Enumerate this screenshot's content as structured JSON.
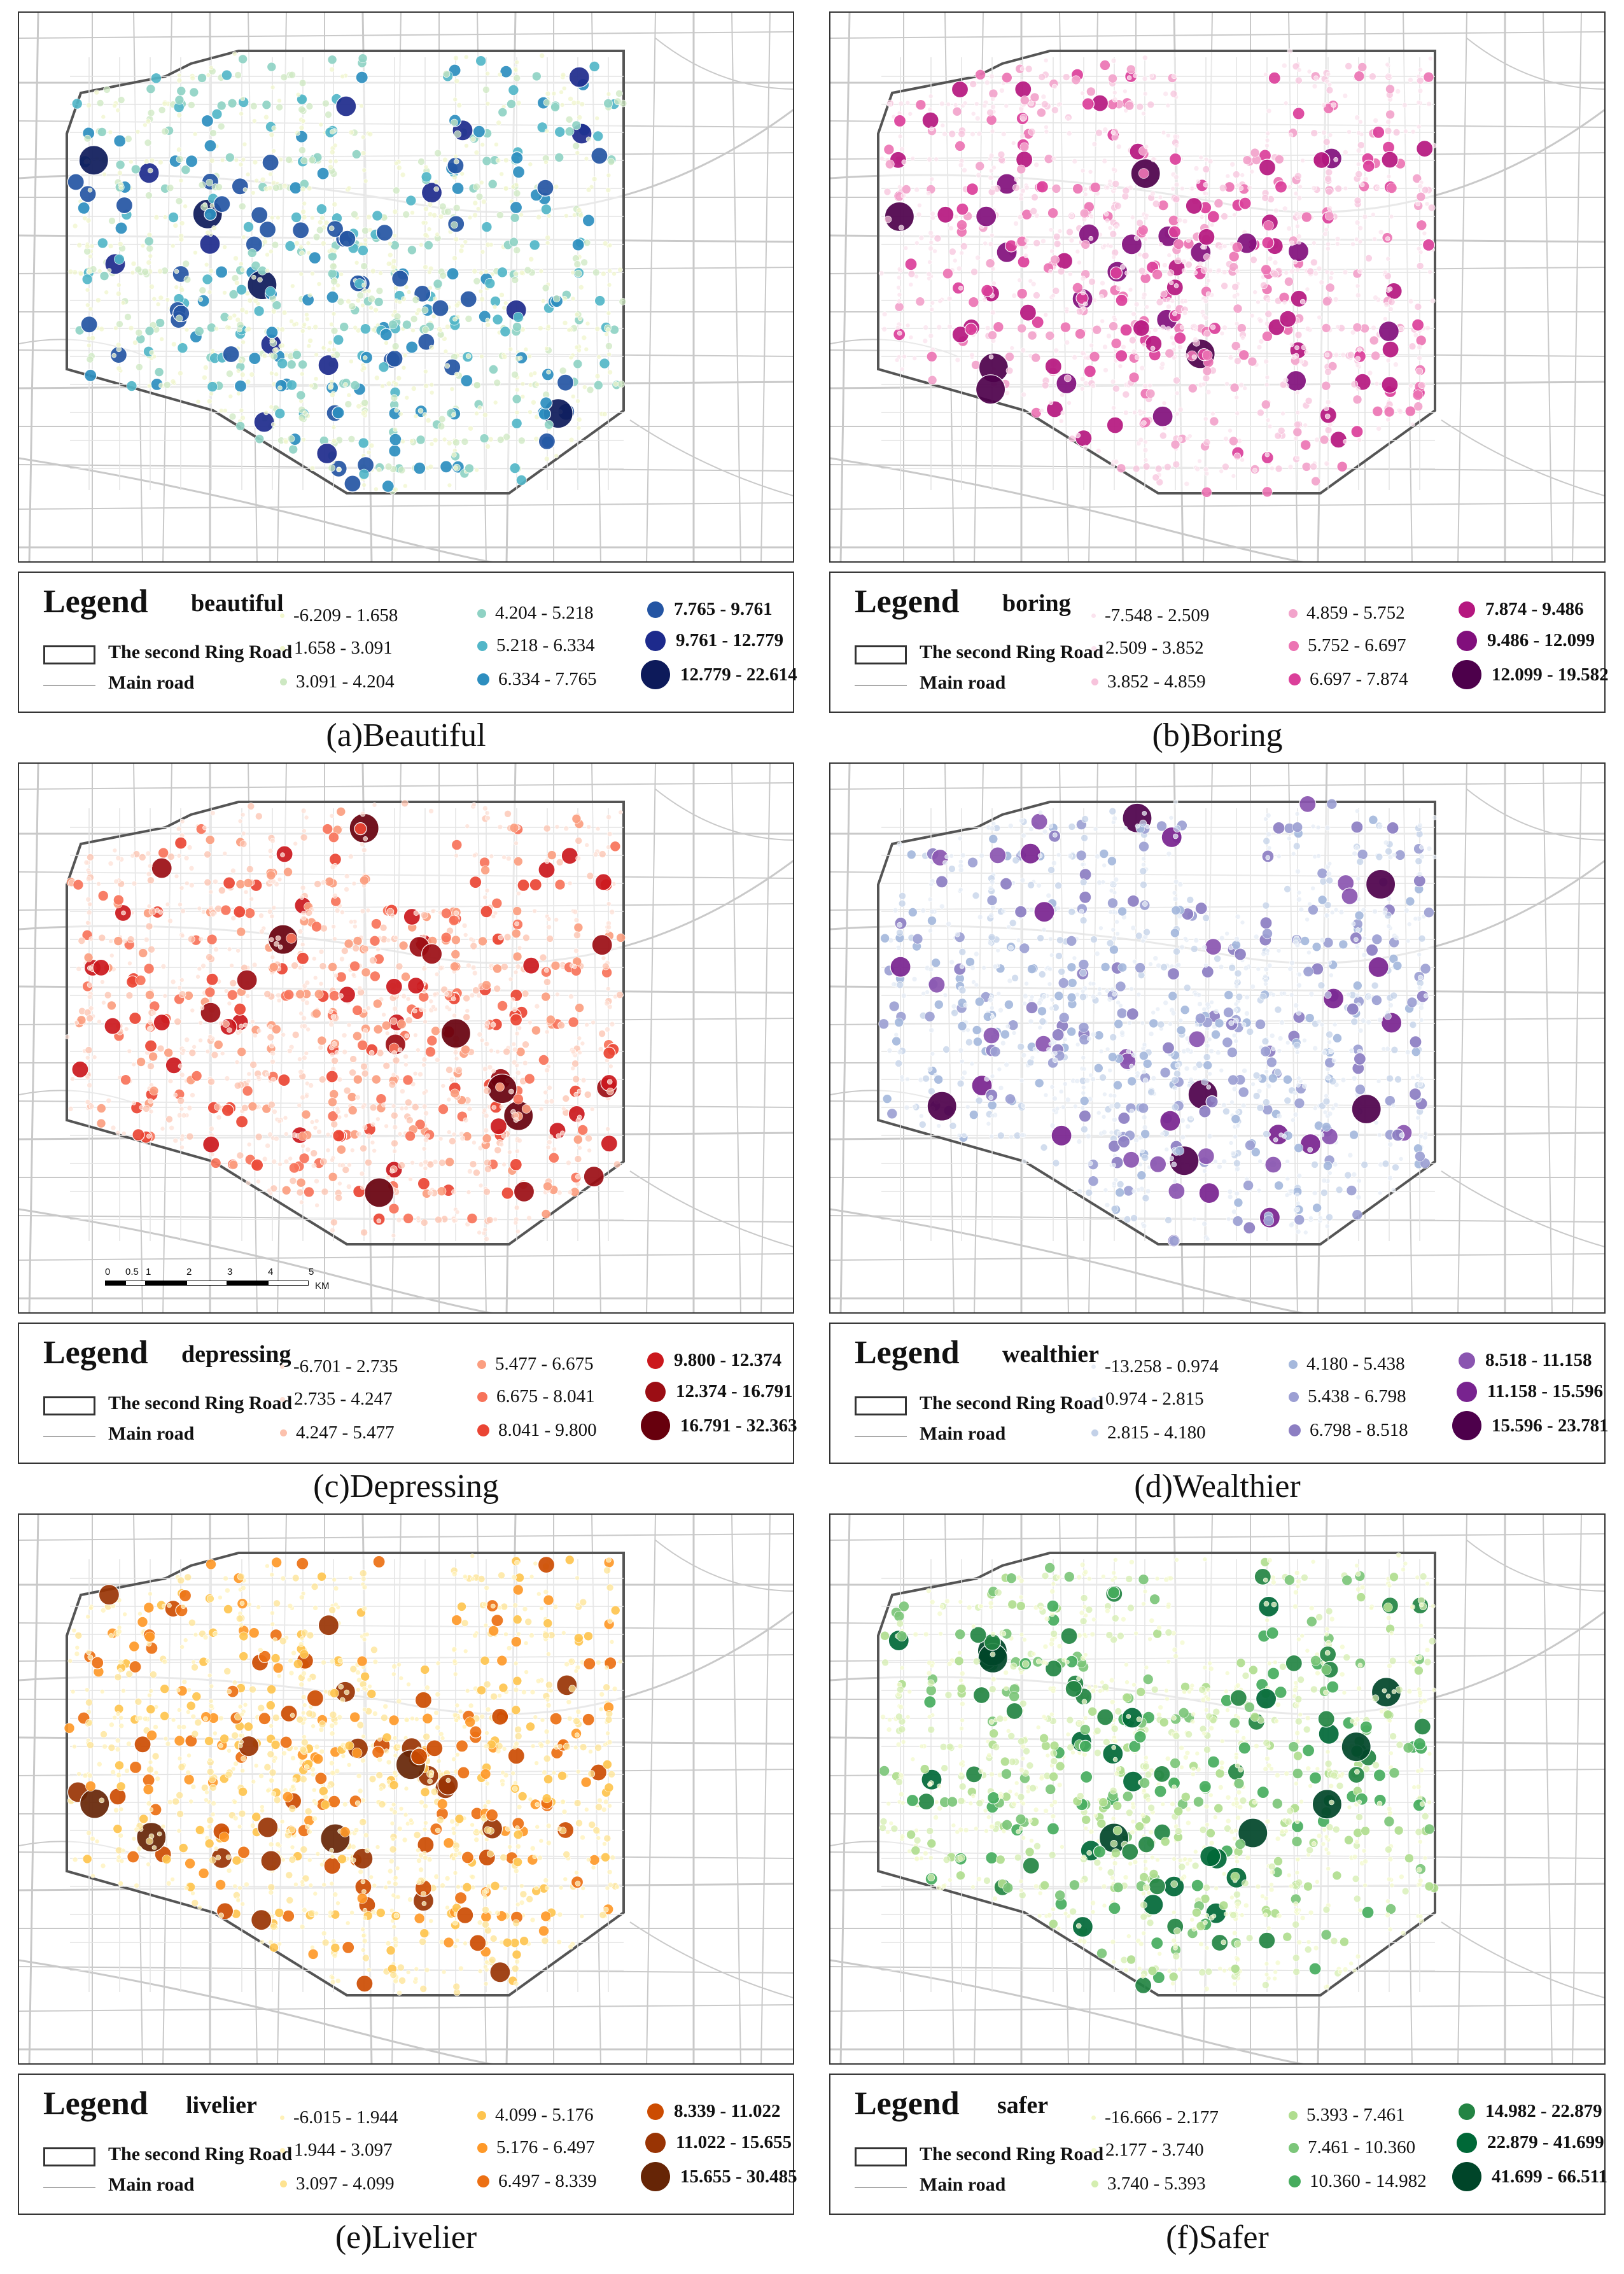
{
  "common": {
    "legend_word": "Legend",
    "ring_road_label": "The second Ring Road",
    "main_road_label": "Main road"
  },
  "scale_bar": {
    "ticks": [
      "0",
      "0.5",
      "1",
      "2",
      "3",
      "4",
      "5"
    ],
    "unit": "KM"
  },
  "panels": [
    {
      "caption": "(a)Beautiful",
      "variable": "beautiful",
      "colors": [
        "#f0f6cc",
        "#cde8c2",
        "#8fd2c4",
        "#52b6c8",
        "#2d8ebf",
        "#2455a3",
        "#1d2a8c",
        "#0d1a5a"
      ],
      "classes": [
        "-6.209 - 1.658",
        "1.658 - 3.091",
        "3.091 - 4.204",
        "4.204 - 5.218",
        "5.218 - 6.334",
        "6.334 - 7.765",
        "7.765 - 9.761",
        "9.761 - 12.779",
        "12.779 - 22.614"
      ]
    },
    {
      "caption": "(b)Boring",
      "variable": "boring",
      "colors": [
        "#fbe3ee",
        "#f7c3dc",
        "#f2a3cb",
        "#ec74b3",
        "#db3f9a",
        "#b5177f",
        "#810f7c",
        "#4d004b"
      ],
      "classes": [
        "-7.548 - 2.509",
        "2.509 - 3.852",
        "3.852 - 4.859",
        "4.859 - 5.752",
        "5.752 - 6.697",
        "6.697 - 7.874",
        "7.874 - 9.486",
        "9.486 - 12.099",
        "12.099 - 19.582"
      ]
    },
    {
      "caption": "(c)Depressing",
      "variable": "depressing",
      "colors": [
        "#fde0d6",
        "#fcc1ad",
        "#fb9e80",
        "#f7735a",
        "#ea4534",
        "#cb181d",
        "#9b0d14",
        "#67000d"
      ],
      "classes": [
        "-6.701 - 2.735",
        "2.735 - 4.247",
        "4.247 - 5.477",
        "5.477 - 6.675",
        "6.675 - 8.041",
        "8.041 - 9.800",
        "9.800 - 12.374",
        "12.374 - 16.791",
        "16.791 - 32.363"
      ]
    },
    {
      "caption": "(d)Wealthier",
      "variable": "wealthier",
      "colors": [
        "#e6ecf6",
        "#c3d1e8",
        "#a5b8dc",
        "#9c9fd3",
        "#8c7ec2",
        "#8a55b0",
        "#78238f",
        "#4d004b"
      ],
      "classes": [
        "-13.258 - 0.974",
        "0.974 - 2.815",
        "2.815 - 4.180",
        "4.180 - 5.438",
        "5.438 - 6.798",
        "6.798 - 8.518",
        "8.518 - 11.158",
        "11.158 - 15.596",
        "15.596 - 23.781"
      ]
    },
    {
      "caption": "(e)Livelier",
      "variable": "livelier",
      "colors": [
        "#fff1b8",
        "#fee391",
        "#fec44f",
        "#fe9929",
        "#ec7014",
        "#cc4c02",
        "#993404",
        "#662506"
      ],
      "classes": [
        "-6.015 - 1.944",
        "1.944 - 3.097",
        "3.097 - 4.099",
        "4.099 - 5.176",
        "5.176 - 6.497",
        "6.497 - 8.339",
        "8.339 - 11.022",
        "11.022 - 15.655",
        "15.655 - 30.485"
      ]
    },
    {
      "caption": "(f)Safer",
      "variable": "safer",
      "colors": [
        "#f3f9cc",
        "#d4eeb0",
        "#b0dd8f",
        "#7cc67a",
        "#47ac5e",
        "#238443",
        "#006837",
        "#004529"
      ],
      "classes": [
        "-16.666 - 2.177",
        "2.177 - 3.740",
        "3.740 - 5.393",
        "5.393 - 7.461",
        "7.461 - 10.360",
        "10.360 - 14.982",
        "14.982 - 22.879",
        "22.879 - 41.699",
        "41.699 - 66.511"
      ]
    }
  ]
}
